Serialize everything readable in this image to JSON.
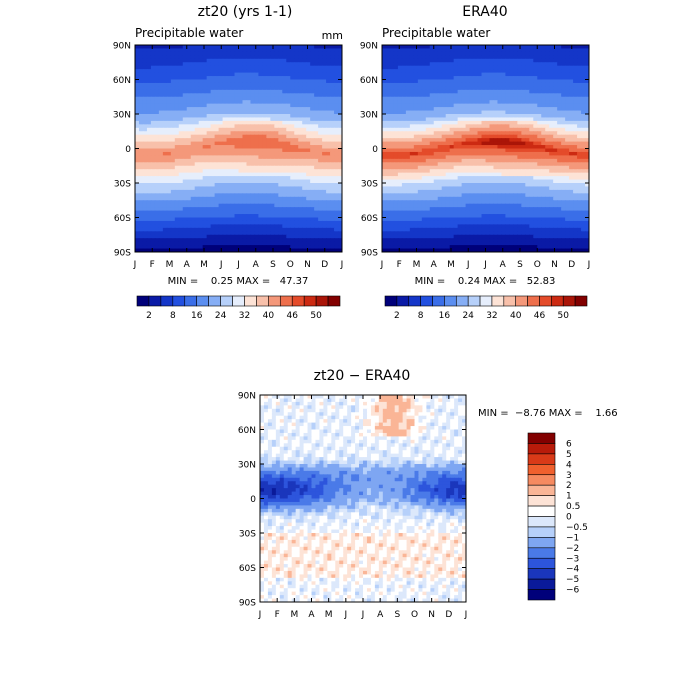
{
  "chart_data": [
    {
      "type": "heatmap",
      "title": "zt20 (yrs 1-1)",
      "subtitle": "Precipitable water",
      "units": "mm",
      "x": [
        "J",
        "F",
        "M",
        "A",
        "M",
        "J",
        "J",
        "A",
        "S",
        "O",
        "N",
        "D",
        "J"
      ],
      "y": [
        "90N",
        "60N",
        "30N",
        "0",
        "30S",
        "60S",
        "90S"
      ],
      "stats": "MIN =    0.25 MAX =   47.37",
      "min": 0.25,
      "max": 47.37,
      "legend": [
        "2",
        "8",
        "16",
        "24",
        "32",
        "40",
        "46",
        "50"
      ],
      "profile": {
        "lat": [
          90,
          60,
          30,
          0,
          -30,
          -60,
          -90
        ],
        "values": [
          4,
          8,
          18,
          40,
          22,
          8,
          1
        ],
        "jul_peak_lat": 8
      }
    },
    {
      "type": "heatmap",
      "title": "ERA40",
      "subtitle": "Precipitable water",
      "x": [
        "J",
        "F",
        "M",
        "A",
        "M",
        "J",
        "J",
        "A",
        "S",
        "O",
        "N",
        "D",
        "J"
      ],
      "y": [
        "90N",
        "60N",
        "30N",
        "0",
        "30S",
        "60S",
        "90S"
      ],
      "stats": "MIN =    0.24 MAX =   52.83",
      "min": 0.24,
      "max": 52.83,
      "legend": [
        "2",
        "8",
        "16",
        "24",
        "32",
        "40",
        "46",
        "50"
      ],
      "profile": {
        "lat": [
          90,
          60,
          30,
          0,
          -30,
          -60,
          -90
        ],
        "values": [
          4,
          8,
          18,
          46,
          22,
          8,
          1
        ],
        "jul_peak_lat": 8
      }
    },
    {
      "type": "heatmap",
      "title": "zt20 − ERA40",
      "x": [
        "J",
        "F",
        "M",
        "A",
        "M",
        "J",
        "J",
        "A",
        "S",
        "O",
        "N",
        "D",
        "J"
      ],
      "y": [
        "90N",
        "60N",
        "30N",
        "0",
        "30S",
        "60S",
        "90S"
      ],
      "stats": "MIN =  −8.76 MAX =    1.66",
      "min": -8.76,
      "max": 1.66,
      "legend": [
        "6",
        "5",
        "4",
        "3",
        "2",
        "1",
        "0.5",
        "0",
        "−0.5",
        "−1",
        "−2",
        "−3",
        "−4",
        "−5",
        "−6"
      ]
    }
  ],
  "colors": {
    "upper_scale": [
      "#00007a",
      "#0a1aa6",
      "#1436c8",
      "#2250e0",
      "#3a6ee8",
      "#5b8ef0",
      "#86aef5",
      "#b6d0fa",
      "#e6eefc",
      "#fde3d6",
      "#f8c0aa",
      "#f4987a",
      "#ee6f4c",
      "#e44b2a",
      "#cc2a12",
      "#aa1508",
      "#820000"
    ],
    "diff_scale": [
      "#820000",
      "#b81b0a",
      "#d93a18",
      "#f0602e",
      "#f68a60",
      "#fab596",
      "#fde3d6",
      "#ffffff",
      "#dce8fb",
      "#b6d0fa",
      "#7ea6f2",
      "#4a7ae8",
      "#2d55dc",
      "#1a36bc",
      "#0a1a9a",
      "#00007a"
    ]
  }
}
